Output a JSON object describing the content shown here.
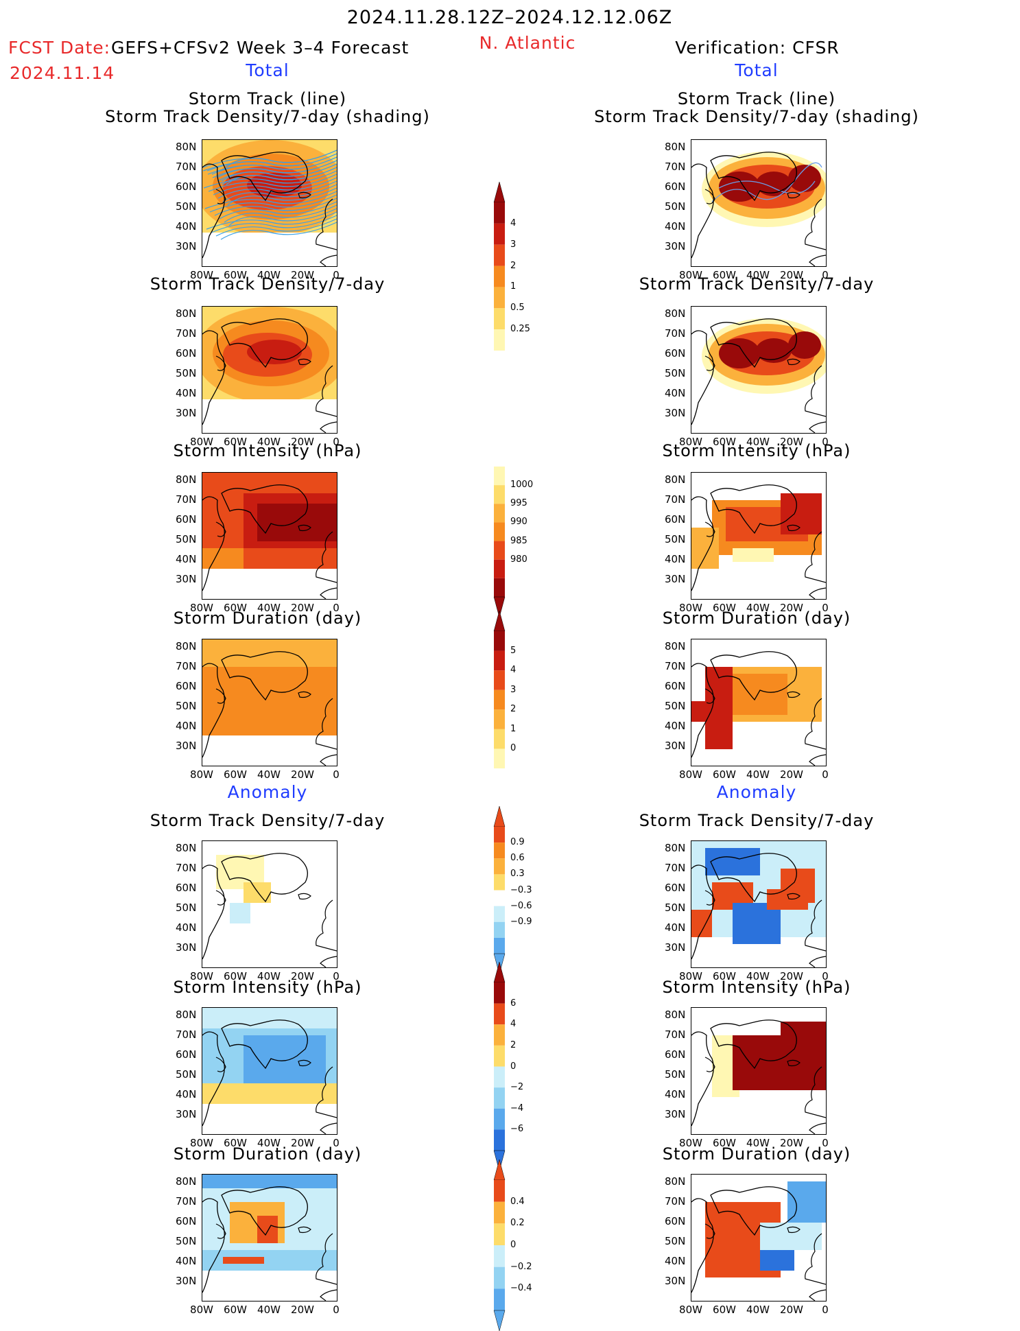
{
  "header": {
    "date_range": "2024.11.28.12Z–2024.12.12.06Z",
    "fcst_date_label": "FCST Date:",
    "fcst_date": "2024.11.14",
    "model": "GEFS+CFSv2 Week 3–4 Forecast",
    "region": "N. Atlantic",
    "verification": "Verification: CFSR"
  },
  "sections": {
    "total_left": "Total",
    "total_right": "Total",
    "anomaly_left": "Anomaly",
    "anomaly_right": "Anomaly"
  },
  "panel_titles": {
    "track_line": "Storm Track (line)",
    "track_density_shading": "Storm Track Density/7-day (shading)",
    "track_density": "Storm Track Density/7-day",
    "intensity": "Storm Intensity (hPa)",
    "duration": "Storm Duration (day)"
  },
  "axes": {
    "lat_labels": [
      "80N",
      "70N",
      "60N",
      "50N",
      "40N",
      "30N"
    ],
    "lon_labels": [
      "80W",
      "60W",
      "40W",
      "20W",
      "0"
    ]
  },
  "colorbars": {
    "track_density": [
      "4",
      "3",
      "2",
      "1",
      "0.5",
      "0.25"
    ],
    "intensity": [
      "1000",
      "995",
      "990",
      "985",
      "980"
    ],
    "duration": [
      "5",
      "4",
      "3",
      "2",
      "1",
      "0"
    ],
    "density_anomaly": [
      "0.9",
      "0.6",
      "0.3",
      "−0.3",
      "−0.6",
      "−0.9"
    ],
    "intensity_anomaly": [
      "6",
      "4",
      "2",
      "0",
      "−2",
      "−4",
      "−6"
    ],
    "duration_anomaly": [
      "0.4",
      "0.2",
      "0",
      "−0.2",
      "−0.4"
    ]
  },
  "colors": {
    "warm": [
      "#fff7b3",
      "#fddc6a",
      "#fbb13c",
      "#f68a1f",
      "#e84b1a",
      "#c81d11",
      "#990a0a"
    ],
    "cool": [
      "#cbeef9",
      "#93d3f2",
      "#5aa9ec",
      "#2b72dc",
      "#1845b8"
    ],
    "title_red": "#e8292a",
    "title_blue": "#1f3cff"
  }
}
